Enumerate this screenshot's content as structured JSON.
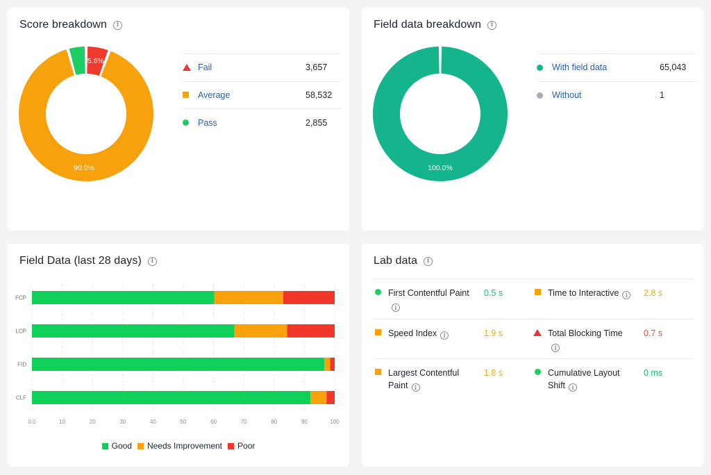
{
  "colors": {
    "fail": "#ee3a2d",
    "average": "#f7a20c",
    "pass": "#1ccd63",
    "field": "#14b58d",
    "without": "#a8acb3",
    "good": "#0fd15a",
    "needs_improvement": "#f8a10a",
    "poor": "#f2362a",
    "val_good": "#1fb87a",
    "val_avg": "#e3b21a",
    "val_poor": "#d9534f"
  },
  "score_breakdown": {
    "title": "Score breakdown",
    "donut_label_fail": "5.6%",
    "donut_label_average": "90.0%",
    "items": [
      {
        "label": "Fail",
        "value": "3,657",
        "count": 3657,
        "marker": "triangle",
        "color_key": "fail"
      },
      {
        "label": "Average",
        "value": "58,532",
        "count": 58532,
        "marker": "square",
        "color_key": "average"
      },
      {
        "label": "Pass",
        "value": "2,855",
        "count": 2855,
        "marker": "circle",
        "color_key": "pass"
      }
    ]
  },
  "field_breakdown": {
    "title": "Field data breakdown",
    "donut_label": "100.0%",
    "items": [
      {
        "label": "With field data",
        "value": "65,043",
        "count": 65043,
        "marker": "circle",
        "color_key": "field"
      },
      {
        "label": "Without",
        "value": "1",
        "count": 1,
        "marker": "circle",
        "color_key": "without"
      }
    ]
  },
  "field_data_28": {
    "title": "Field Data (last 28 days)"
  },
  "chart_data": [
    {
      "type": "pie",
      "title": "Score breakdown",
      "donut": true,
      "categories": [
        "Fail",
        "Average",
        "Pass"
      ],
      "values": [
        3657,
        58532,
        2855
      ],
      "data_labels": [
        "5.6%",
        "90.0%",
        ""
      ]
    },
    {
      "type": "pie",
      "title": "Field data breakdown",
      "donut": true,
      "categories": [
        "With field data",
        "Without"
      ],
      "values": [
        65043,
        1
      ],
      "data_labels": [
        "100.0%",
        ""
      ]
    },
    {
      "type": "bar",
      "orientation": "horizontal",
      "stacked": true,
      "title": "Field Data (last 28 days)",
      "categories": [
        "FCP",
        "LCP",
        "FID",
        "CLF"
      ],
      "series": [
        {
          "name": "Good",
          "values": [
            60.2,
            66.9,
            96.6,
            92.0
          ]
        },
        {
          "name": "Needs Improvement",
          "values": [
            22.8,
            17.4,
            1.9,
            5.3
          ]
        },
        {
          "name": "Poor",
          "values": [
            17.0,
            15.7,
            1.5,
            2.7
          ]
        }
      ],
      "xlim": [
        0,
        100
      ],
      "xticks": [
        "0.0",
        "10",
        "20",
        "30",
        "40",
        "50",
        "60",
        "70",
        "80",
        "90",
        "100"
      ],
      "grid": true,
      "legend": "bottom"
    }
  ],
  "lab_data": {
    "title": "Lab data",
    "rows": [
      [
        {
          "name": "First Contentful Paint",
          "value": "0.5 s",
          "marker": "circle",
          "status": "good"
        },
        {
          "name": "Time to Interactive",
          "value": "2.8 s",
          "marker": "square",
          "status": "avg"
        }
      ],
      [
        {
          "name": "Speed Index",
          "value": "1.9 s",
          "marker": "square",
          "status": "avg"
        },
        {
          "name": "Total Blocking Time",
          "value": "0.7 s",
          "marker": "triangle",
          "status": "poor"
        }
      ],
      [
        {
          "name": "Largest Contentful Paint",
          "value": "1.8 s",
          "marker": "square",
          "status": "avg"
        },
        {
          "name": "Cumulative Layout Shift",
          "value": "0 ms",
          "marker": "circle",
          "status": "good"
        }
      ]
    ]
  },
  "info_glyph": "i"
}
